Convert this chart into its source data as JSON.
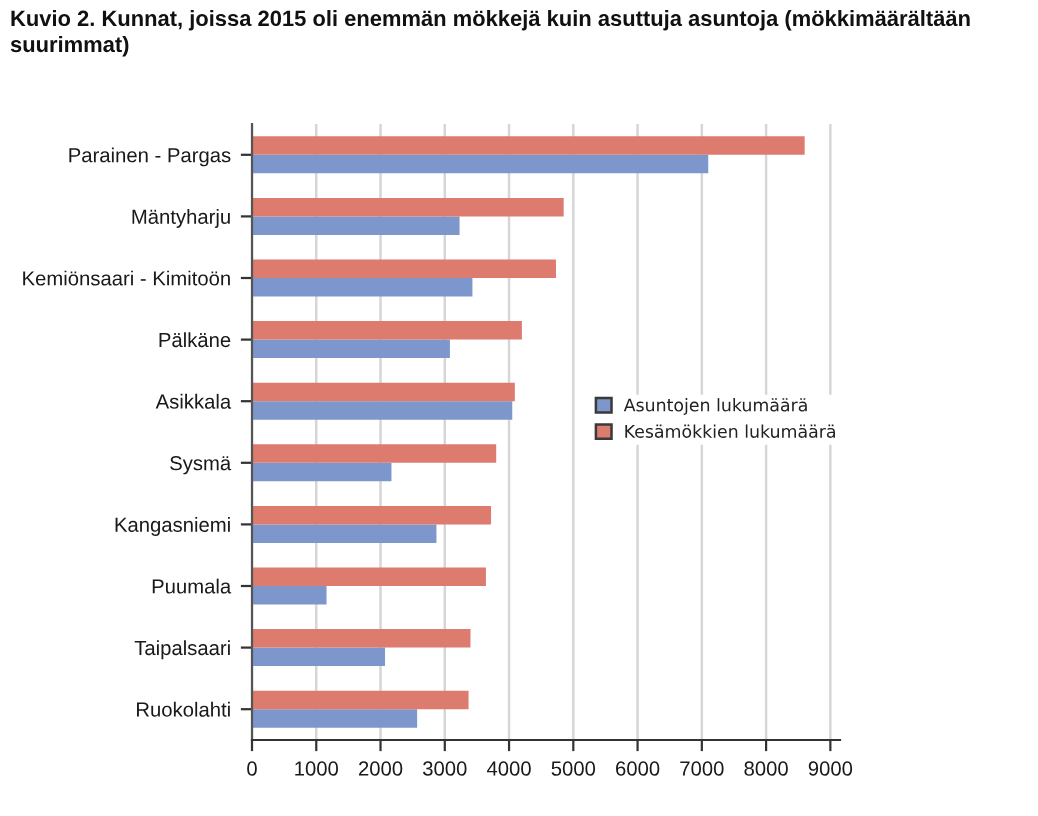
{
  "chart_data": {
    "type": "bar",
    "orientation": "horizontal",
    "title": "Kuvio 2. Kunnat, joissa 2015 oli enemmän mökkejä kuin asuttuja asuntoja (mökkimäärältään suurimmat)",
    "categories": [
      "Parainen - Pargas",
      "Mäntyharju",
      "Kemiönsaari - Kimitoön",
      "Pälkäne",
      "Asikkala",
      "Sysmä",
      "Kangasniemi",
      "Puumala",
      "Taipalsaari",
      "Ruokolahti"
    ],
    "series": [
      {
        "name": "Asuntojen lukumäärä",
        "color": "#7d97cd",
        "values": [
          7100,
          3230,
          3430,
          3080,
          4050,
          2170,
          2870,
          1160,
          2070,
          2570
        ]
      },
      {
        "name": "Kesämökkien lukumäärä",
        "color": "#dc7b6e",
        "values": [
          8600,
          4850,
          4730,
          4200,
          4090,
          3800,
          3720,
          3640,
          3400,
          3370
        ]
      }
    ],
    "xlim": [
      0,
      9150
    ],
    "xticks": [
      0,
      1000,
      2000,
      3000,
      4000,
      5000,
      6000,
      7000,
      8000,
      9000
    ],
    "grid": "x",
    "legend": "right"
  }
}
